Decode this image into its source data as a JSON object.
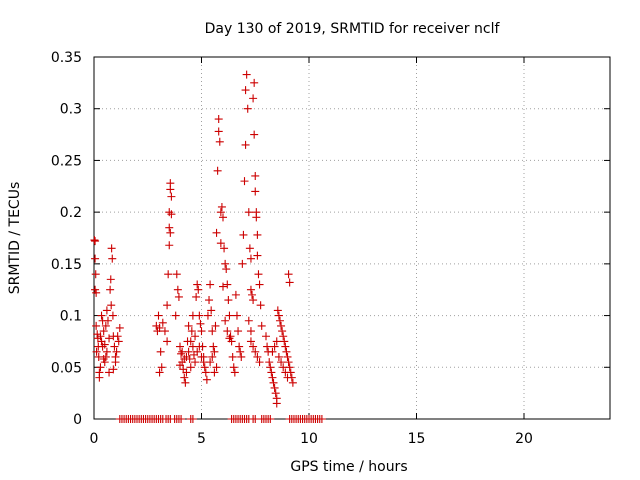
{
  "chart_data": {
    "type": "scatter",
    "title": "Day 130 of 2019, SRMTID for receiver nclf",
    "xlabel": "GPS time / hours",
    "ylabel": "SRMTID / TECUs",
    "xlim": [
      0,
      24
    ],
    "ylim": [
      0,
      0.35
    ],
    "xticks": [
      "0",
      "5",
      "10",
      "15",
      "20"
    ],
    "yticks": [
      "0",
      "0.05",
      "0.1",
      "0.15",
      "0.2",
      "0.25",
      "0.3",
      "0.35"
    ],
    "grid": true,
    "legend": "none",
    "series": [
      {
        "color": "#cc0000",
        "marker": "plus",
        "points": [
          [
            0.02,
            0.173
          ],
          [
            0.05,
            0.172
          ],
          [
            0.05,
            0.155
          ],
          [
            0.08,
            0.14
          ],
          [
            0.05,
            0.125
          ],
          [
            0.1,
            0.122
          ],
          [
            0.1,
            0.09
          ],
          [
            0.15,
            0.082
          ],
          [
            0.18,
            0.078
          ],
          [
            0.2,
            0.07
          ],
          [
            0.22,
            0.06
          ],
          [
            0.25,
            0.045
          ],
          [
            0.12,
            0.065
          ],
          [
            0.3,
            0.05
          ],
          [
            0.35,
            0.1
          ],
          [
            0.4,
            0.095
          ],
          [
            0.45,
            0.085
          ],
          [
            0.5,
            0.072
          ],
          [
            0.55,
            0.06
          ],
          [
            0.6,
            0.105
          ],
          [
            0.65,
            0.095
          ],
          [
            0.3,
            0.08
          ],
          [
            0.35,
            0.075
          ],
          [
            0.4,
            0.07
          ],
          [
            0.45,
            0.058
          ],
          [
            0.5,
            0.055
          ],
          [
            0.55,
            0.09
          ],
          [
            0.6,
            0.065
          ],
          [
            0.7,
            0.078
          ],
          [
            0.75,
            0.125
          ],
          [
            0.78,
            0.135
          ],
          [
            0.8,
            0.11
          ],
          [
            0.82,
            0.165
          ],
          [
            0.85,
            0.155
          ],
          [
            0.88,
            0.1
          ],
          [
            0.9,
            0.08
          ],
          [
            0.95,
            0.07
          ],
          [
            1.0,
            0.06
          ],
          [
            1.05,
            0.065
          ],
          [
            1.1,
            0.08
          ],
          [
            1.15,
            0.075
          ],
          [
            1.2,
            0.088
          ],
          [
            0.9,
            0.048
          ],
          [
            1.0,
            0.055
          ],
          [
            0.25,
            0.04
          ],
          [
            0.7,
            0.045
          ],
          [
            2.9,
            0.09
          ],
          [
            2.95,
            0.085
          ],
          [
            3.0,
            0.1
          ],
          [
            3.05,
            0.088
          ],
          [
            3.1,
            0.065
          ],
          [
            3.15,
            0.05
          ],
          [
            3.05,
            0.045
          ],
          [
            3.2,
            0.093
          ],
          [
            3.3,
            0.085
          ],
          [
            3.4,
            0.11
          ],
          [
            3.45,
            0.14
          ],
          [
            3.5,
            0.168
          ],
          [
            3.5,
            0.2
          ],
          [
            3.55,
            0.228
          ],
          [
            3.55,
            0.222
          ],
          [
            3.6,
            0.215
          ],
          [
            3.5,
            0.185
          ],
          [
            3.55,
            0.18
          ],
          [
            3.6,
            0.198
          ],
          [
            3.4,
            0.075
          ],
          [
            3.8,
            0.1
          ],
          [
            3.85,
            0.14
          ],
          [
            3.9,
            0.125
          ],
          [
            3.95,
            0.118
          ],
          [
            4.0,
            0.07
          ],
          [
            4.05,
            0.063
          ],
          [
            4.1,
            0.055
          ],
          [
            4.15,
            0.048
          ],
          [
            4.2,
            0.04
          ],
          [
            4.25,
            0.035
          ],
          [
            4.3,
            0.06
          ],
          [
            4.35,
            0.075
          ],
          [
            4.4,
            0.065
          ],
          [
            4.45,
            0.058
          ],
          [
            4.5,
            0.05
          ],
          [
            4.55,
            0.085
          ],
          [
            4.6,
            0.07
          ],
          [
            4.65,
            0.062
          ],
          [
            4.7,
            0.055
          ],
          [
            4.75,
            0.118
          ],
          [
            4.8,
            0.13
          ],
          [
            4.85,
            0.125
          ],
          [
            4.9,
            0.1
          ],
          [
            4.95,
            0.092
          ],
          [
            5.0,
            0.085
          ],
          [
            5.05,
            0.07
          ],
          [
            5.1,
            0.06
          ],
          [
            5.15,
            0.05
          ],
          [
            5.2,
            0.045
          ],
          [
            5.25,
            0.038
          ],
          [
            4.0,
            0.052
          ],
          [
            4.1,
            0.065
          ],
          [
            4.2,
            0.058
          ],
          [
            4.3,
            0.045
          ],
          [
            4.4,
            0.09
          ],
          [
            4.5,
            0.075
          ],
          [
            4.6,
            0.1
          ],
          [
            4.7,
            0.08
          ],
          [
            4.8,
            0.065
          ],
          [
            4.9,
            0.07
          ],
          [
            5.0,
            0.06
          ],
          [
            5.1,
            0.055
          ],
          [
            5.3,
            0.1
          ],
          [
            5.35,
            0.115
          ],
          [
            5.4,
            0.13
          ],
          [
            5.45,
            0.105
          ],
          [
            5.5,
            0.085
          ],
          [
            5.55,
            0.07
          ],
          [
            5.6,
            0.065
          ],
          [
            5.65,
            0.09
          ],
          [
            5.7,
            0.18
          ],
          [
            5.75,
            0.24
          ],
          [
            5.8,
            0.29
          ],
          [
            5.8,
            0.278
          ],
          [
            5.85,
            0.268
          ],
          [
            5.9,
            0.2
          ],
          [
            5.95,
            0.205
          ],
          [
            6.0,
            0.195
          ],
          [
            6.05,
            0.165
          ],
          [
            6.1,
            0.15
          ],
          [
            6.15,
            0.145
          ],
          [
            6.2,
            0.13
          ],
          [
            6.25,
            0.115
          ],
          [
            6.3,
            0.1
          ],
          [
            6.35,
            0.08
          ],
          [
            6.4,
            0.075
          ],
          [
            6.45,
            0.06
          ],
          [
            6.5,
            0.05
          ],
          [
            6.55,
            0.045
          ],
          [
            5.9,
            0.17
          ],
          [
            6.0,
            0.128
          ],
          [
            6.1,
            0.095
          ],
          [
            6.2,
            0.085
          ],
          [
            6.3,
            0.078
          ],
          [
            5.4,
            0.055
          ],
          [
            5.5,
            0.06
          ],
          [
            5.6,
            0.045
          ],
          [
            5.7,
            0.05
          ],
          [
            6.6,
            0.12
          ],
          [
            6.65,
            0.1
          ],
          [
            6.7,
            0.085
          ],
          [
            6.75,
            0.07
          ],
          [
            6.8,
            0.065
          ],
          [
            6.85,
            0.06
          ],
          [
            6.9,
            0.15
          ],
          [
            6.95,
            0.178
          ],
          [
            7.0,
            0.23
          ],
          [
            7.05,
            0.265
          ],
          [
            7.05,
            0.318
          ],
          [
            7.1,
            0.333
          ],
          [
            7.15,
            0.3
          ],
          [
            7.2,
            0.2
          ],
          [
            7.25,
            0.165
          ],
          [
            7.3,
            0.155
          ],
          [
            7.3,
            0.125
          ],
          [
            7.35,
            0.12
          ],
          [
            7.4,
            0.115
          ],
          [
            7.4,
            0.31
          ],
          [
            7.45,
            0.275
          ],
          [
            7.45,
            0.325
          ],
          [
            7.5,
            0.235
          ],
          [
            7.5,
            0.22
          ],
          [
            7.55,
            0.2
          ],
          [
            7.55,
            0.195
          ],
          [
            7.6,
            0.178
          ],
          [
            7.6,
            0.158
          ],
          [
            7.65,
            0.14
          ],
          [
            7.7,
            0.13
          ],
          [
            7.75,
            0.11
          ],
          [
            7.8,
            0.09
          ],
          [
            7.3,
            0.075
          ],
          [
            7.4,
            0.07
          ],
          [
            7.5,
            0.065
          ],
          [
            7.6,
            0.06
          ],
          [
            7.7,
            0.055
          ],
          [
            7.2,
            0.095
          ],
          [
            7.3,
            0.085
          ],
          [
            8.0,
            0.08
          ],
          [
            8.05,
            0.07
          ],
          [
            8.1,
            0.065
          ],
          [
            8.15,
            0.055
          ],
          [
            8.2,
            0.05
          ],
          [
            8.25,
            0.045
          ],
          [
            8.3,
            0.04
          ],
          [
            8.35,
            0.035
          ],
          [
            8.4,
            0.03
          ],
          [
            8.45,
            0.025
          ],
          [
            8.5,
            0.02
          ],
          [
            8.5,
            0.015
          ],
          [
            8.55,
            0.105
          ],
          [
            8.6,
            0.1
          ],
          [
            8.65,
            0.095
          ],
          [
            8.7,
            0.09
          ],
          [
            8.75,
            0.085
          ],
          [
            8.8,
            0.08
          ],
          [
            8.85,
            0.075
          ],
          [
            8.9,
            0.07
          ],
          [
            8.95,
            0.065
          ],
          [
            9.0,
            0.06
          ],
          [
            9.05,
            0.055
          ],
          [
            9.1,
            0.05
          ],
          [
            9.15,
            0.045
          ],
          [
            9.2,
            0.04
          ],
          [
            9.25,
            0.035
          ],
          [
            9.05,
            0.14
          ],
          [
            9.1,
            0.132
          ],
          [
            8.6,
            0.06
          ],
          [
            8.7,
            0.055
          ],
          [
            8.8,
            0.05
          ],
          [
            8.9,
            0.045
          ],
          [
            9.0,
            0.04
          ],
          [
            8.3,
            0.065
          ],
          [
            8.4,
            0.07
          ],
          [
            8.5,
            0.075
          ]
        ]
      },
      {
        "color": "#cc0000",
        "marker": "plus",
        "points": [
          [
            1.2,
            0
          ],
          [
            1.3,
            0
          ],
          [
            1.4,
            0
          ],
          [
            1.5,
            0
          ],
          [
            1.6,
            0
          ],
          [
            1.7,
            0
          ],
          [
            1.8,
            0
          ],
          [
            1.9,
            0
          ],
          [
            2.0,
            0
          ],
          [
            2.1,
            0
          ],
          [
            2.2,
            0
          ],
          [
            2.3,
            0
          ],
          [
            2.4,
            0
          ],
          [
            2.5,
            0
          ],
          [
            2.6,
            0
          ],
          [
            2.7,
            0
          ],
          [
            2.8,
            0
          ],
          [
            2.9,
            0
          ],
          [
            3.0,
            0
          ],
          [
            3.1,
            0
          ],
          [
            3.2,
            0
          ],
          [
            3.35,
            0
          ],
          [
            3.45,
            0
          ],
          [
            3.55,
            0
          ],
          [
            3.75,
            0
          ],
          [
            3.85,
            0
          ],
          [
            3.95,
            0
          ],
          [
            4.05,
            0
          ],
          [
            4.5,
            0
          ],
          [
            4.6,
            0
          ],
          [
            6.4,
            0
          ],
          [
            6.5,
            0
          ],
          [
            6.6,
            0
          ],
          [
            6.7,
            0
          ],
          [
            6.8,
            0
          ],
          [
            6.9,
            0
          ],
          [
            7.0,
            0
          ],
          [
            7.1,
            0
          ],
          [
            7.2,
            0
          ],
          [
            7.4,
            0
          ],
          [
            7.5,
            0
          ],
          [
            7.8,
            0
          ],
          [
            7.9,
            0
          ],
          [
            8.0,
            0
          ],
          [
            8.1,
            0
          ],
          [
            8.2,
            0
          ],
          [
            9.1,
            0
          ],
          [
            9.2,
            0
          ],
          [
            9.3,
            0
          ],
          [
            9.4,
            0
          ],
          [
            9.5,
            0
          ],
          [
            9.6,
            0
          ],
          [
            9.7,
            0
          ],
          [
            9.8,
            0
          ],
          [
            9.9,
            0
          ],
          [
            10.0,
            0
          ],
          [
            10.1,
            0
          ],
          [
            10.2,
            0
          ],
          [
            10.3,
            0
          ],
          [
            10.4,
            0
          ],
          [
            10.5,
            0
          ],
          [
            10.6,
            0
          ]
        ]
      }
    ]
  }
}
